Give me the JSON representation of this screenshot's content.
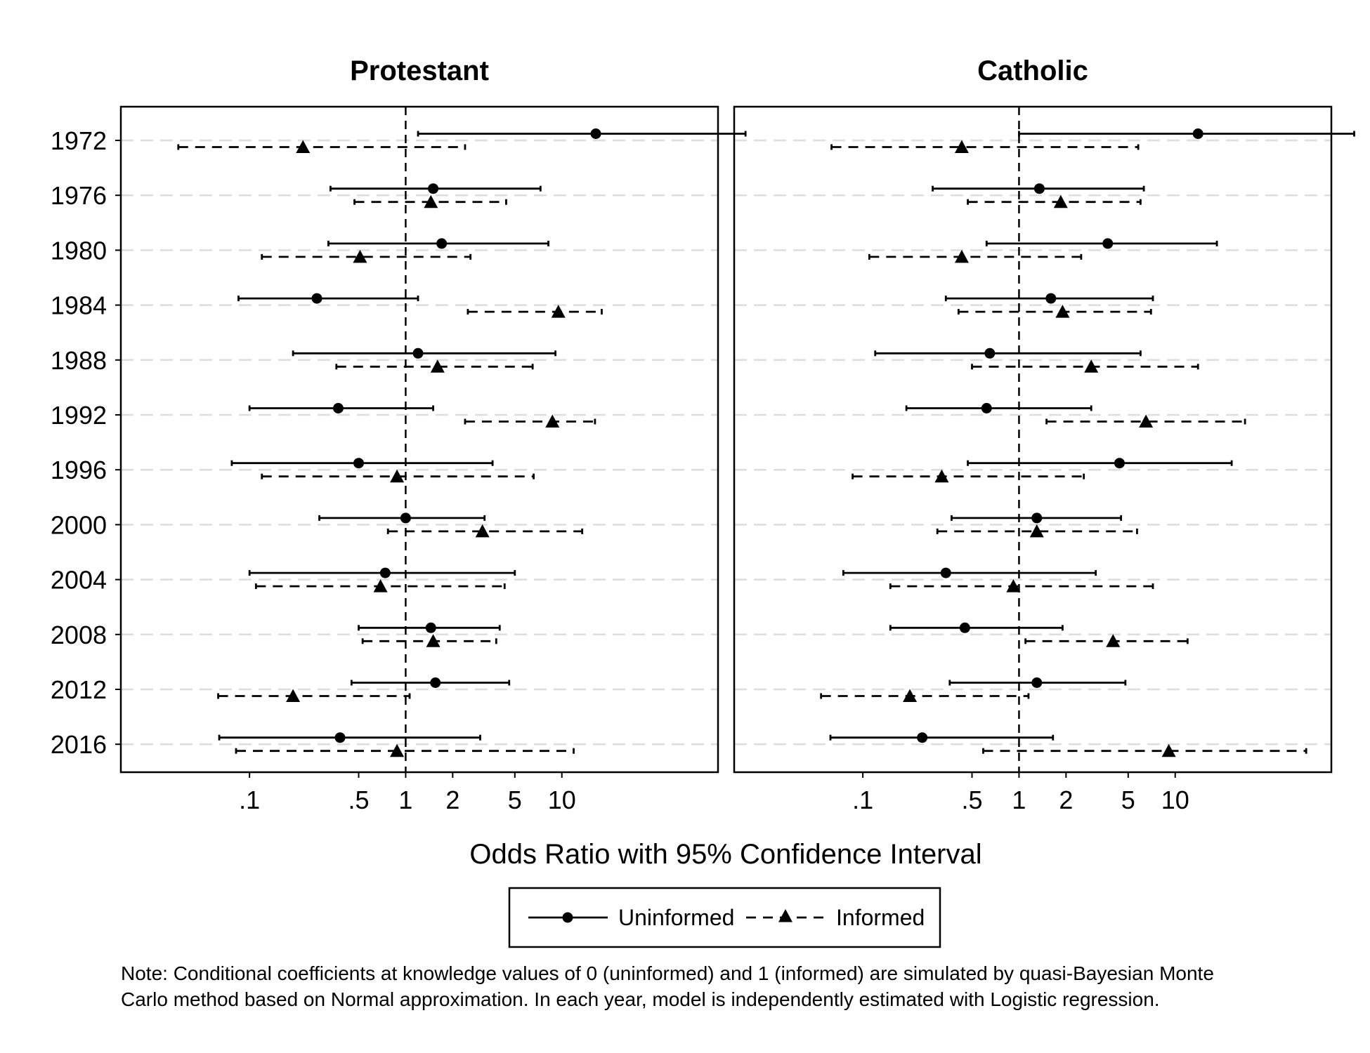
{
  "chart_data": {
    "type": "scatter",
    "xlabel": "Odds Ratio with 95% Confidence Interval",
    "x_scale": "log",
    "xlim": [
      0.015,
      100
    ],
    "x_ticks": [
      {
        "value": 0.1,
        "label": ".1"
      },
      {
        "value": 0.5,
        "label": ".5"
      },
      {
        "value": 1,
        "label": "1"
      },
      {
        "value": 2,
        "label": "2"
      },
      {
        "value": 5,
        "label": "5"
      },
      {
        "value": 10,
        "label": "10"
      }
    ],
    "reference_line": 1,
    "categories": [
      "1972",
      "1976",
      "1980",
      "1984",
      "1988",
      "1992",
      "1996",
      "2000",
      "2004",
      "2008",
      "2012",
      "2016"
    ],
    "legend": {
      "position": "bottom",
      "entries": [
        {
          "label": "Uninformed",
          "marker": "circle",
          "line": "solid"
        },
        {
          "label": "Informed",
          "marker": "triangle",
          "line": "dashed"
        }
      ]
    },
    "panels": [
      {
        "title": "Protestant",
        "series": [
          {
            "name": "Uninformed",
            "estimate": [
              16.5,
              1.5,
              1.7,
              0.27,
              1.2,
              0.37,
              0.5,
              1.0,
              0.74,
              1.45,
              1.55,
              0.38
            ],
            "lower": [
              1.2,
              0.33,
              0.32,
              0.085,
              0.19,
              0.1,
              0.077,
              0.28,
              0.1,
              0.5,
              0.45,
              0.064
            ],
            "upper": [
              150,
              7.3,
              8.2,
              1.2,
              9.1,
              1.5,
              3.6,
              3.2,
              5.0,
              4.0,
              4.6,
              3.0
            ]
          },
          {
            "name": "Informed",
            "estimate": [
              0.22,
              1.45,
              0.51,
              9.5,
              1.6,
              8.7,
              0.88,
              3.1,
              0.69,
              1.5,
              0.19,
              0.88
            ],
            "lower": [
              0.035,
              0.47,
              0.12,
              2.5,
              0.36,
              2.4,
              0.12,
              0.77,
              0.11,
              0.53,
              0.063,
              0.082
            ],
            "upper": [
              2.4,
              4.4,
              2.6,
              18.0,
              6.5,
              16.3,
              6.6,
              13.5,
              4.3,
              3.8,
              1.06,
              11.9
            ]
          }
        ]
      },
      {
        "title": "Catholic",
        "series": [
          {
            "name": "Uninformed",
            "estimate": [
              14.0,
              1.35,
              3.7,
              1.6,
              0.65,
              0.62,
              4.4,
              1.3,
              0.34,
              0.45,
              1.3,
              0.24
            ],
            "lower": [
              1.0,
              0.28,
              0.62,
              0.34,
              0.12,
              0.19,
              0.47,
              0.37,
              0.075,
              0.15,
              0.36,
              0.062
            ],
            "upper": [
              140,
              6.3,
              18.5,
              7.2,
              6.0,
              2.9,
              23.0,
              4.5,
              3.1,
              1.9,
              4.8,
              1.65
            ]
          },
          {
            "name": "Informed",
            "estimate": [
              0.43,
              1.85,
              0.43,
              1.9,
              2.9,
              6.5,
              0.32,
              1.3,
              0.92,
              4.0,
              0.2,
              9.1
            ],
            "lower": [
              0.063,
              0.47,
              0.11,
              0.41,
              0.5,
              1.5,
              0.086,
              0.3,
              0.15,
              1.1,
              0.054,
              0.59
            ],
            "upper": [
              5.8,
              6.0,
              2.5,
              7.0,
              14.0,
              28.0,
              2.6,
              5.7,
              7.2,
              12.0,
              1.15,
              69.0
            ]
          }
        ]
      }
    ]
  },
  "note": {
    "line1": "Note: Conditional coefficients at knowledge values of 0 (uninformed) and 1 (informed) are simulated by quasi-Bayesian Monte",
    "line2": "Carlo method based on Normal approximation. In each year, model is independently estimated with Logistic regression."
  }
}
